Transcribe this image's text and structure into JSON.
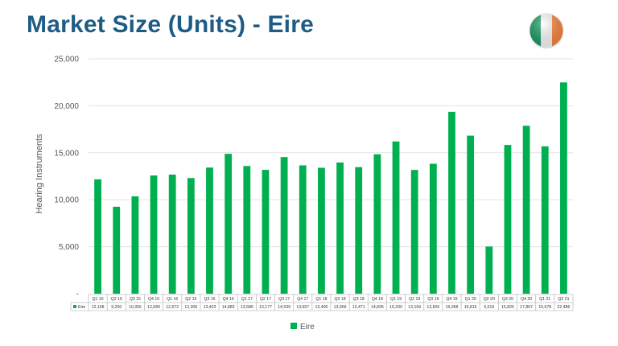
{
  "header": {
    "title": "Market Size (Units) - Eire"
  },
  "flag": {
    "colors": [
      "#169b62",
      "#ffffff",
      "#ff883e"
    ]
  },
  "chart_data": {
    "type": "bar",
    "title": "",
    "ylabel": "Hearing Instruments",
    "xlabel": "",
    "ylim": [
      0,
      25000
    ],
    "yticks": [
      "-",
      "5,000",
      "10,000",
      "15,000",
      "20,000",
      "25,000"
    ],
    "grid": true,
    "legend": "bottom",
    "categories": [
      "Q1 15",
      "Q2 15",
      "Q3 15",
      "Q4 15",
      "Q1 16",
      "Q2 16",
      "Q3 16",
      "Q4 16",
      "Q1 17",
      "Q2 17",
      "Q3 17",
      "Q4 17",
      "Q1 18",
      "Q2 18",
      "Q3 18",
      "Q4 18",
      "Q1 19",
      "Q2 19",
      "Q3 19",
      "Q4 19",
      "Q1 20",
      "Q2 20",
      "Q3 20",
      "Q4 20",
      "Q1 21",
      "Q2 21"
    ],
    "series": [
      {
        "name": "Eire",
        "color": "#00b050",
        "values": [
          12168,
          9250,
          10355,
          12580,
          12672,
          12306,
          13423,
          14883,
          13586,
          13177,
          14539,
          13657,
          13400,
          13959,
          13471,
          14835,
          16200,
          13169,
          13826,
          19358,
          16815,
          5019,
          15825,
          17867,
          15678,
          22486
        ],
        "labels": [
          "12,168",
          "9,250",
          "10,355",
          "12,580",
          "12,672",
          "12,306",
          "13,423",
          "14,883",
          "13,586",
          "13,177",
          "14,539",
          "13,657",
          "13,400",
          "13,959",
          "13,471",
          "14,835",
          "16,200",
          "13,169",
          "13,826",
          "19,358",
          "16,815",
          "5,019",
          "15,825",
          "17,867",
          "15,678",
          "22,486"
        ]
      }
    ]
  }
}
